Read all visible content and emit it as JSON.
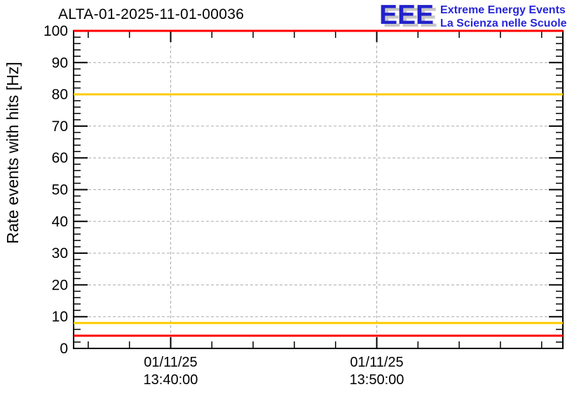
{
  "header": {
    "logo": {
      "acronym": "EEE",
      "line1": "Extreme Energy Events",
      "line2": "La Scienza nelle Scuole",
      "acronym_color": "#2222cc",
      "text_color": "#2727d8",
      "shadow_color": "#c6c6c6"
    }
  },
  "colors": {
    "alarm": "#ff0000",
    "warning": "#ffcc00",
    "grid": "#aaaaaa",
    "axis": "#000000",
    "background": "#ffffff"
  },
  "chart_data": {
    "type": "line",
    "title": "ALTA-01-2025-11-01-00036",
    "ylabel": "Rate events with hits [Hz]",
    "xlabel": "",
    "ylim": [
      0,
      100
    ],
    "y_major_ticks": [
      0,
      10,
      20,
      30,
      40,
      50,
      60,
      70,
      80,
      90,
      100
    ],
    "y_minor_step": 2,
    "grid": true,
    "grid_style": "dashed",
    "x_axis": {
      "unit": "minutes-of-day",
      "range_readable": [
        "13:35:17",
        "13:59:02"
      ],
      "date": "01/11/25",
      "t0": 815.29,
      "t1": 839.03,
      "minor_tick_interval_minutes": 2,
      "minor_ticks": [
        816,
        818,
        822,
        824,
        826,
        828,
        832,
        834,
        836,
        838
      ],
      "major_ticks": [
        {
          "t": 820,
          "label_lines": [
            "01/11/25",
            "13:40:00"
          ]
        },
        {
          "t": 830,
          "label_lines": [
            "01/11/25",
            "13:50:00"
          ]
        }
      ]
    },
    "threshold_lines": [
      {
        "name": "upper-alarm",
        "value": 100,
        "color": "#ff0000"
      },
      {
        "name": "upper-warning",
        "value": 80,
        "color": "#ffcc00"
      },
      {
        "name": "lower-warning",
        "value": 8,
        "color": "#ffcc00"
      },
      {
        "name": "lower-alarm",
        "value": 4,
        "color": "#ff0000"
      }
    ],
    "series": [],
    "notes": "Empty run plot: no data points drawn, only alarm/warning threshold lines on dashed grid"
  }
}
